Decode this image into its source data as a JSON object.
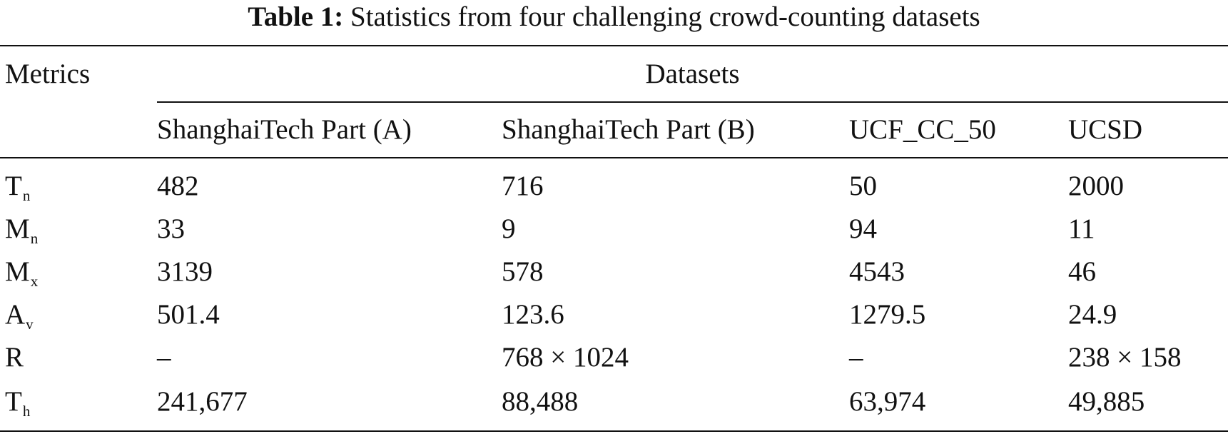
{
  "caption": {
    "label": "Table 1:",
    "text": "Statistics from four challenging crowd-counting datasets"
  },
  "header": {
    "metrics": "Metrics",
    "datasets": "Datasets",
    "columns": [
      "ShanghaiTech Part (A)",
      "ShanghaiTech Part (B)",
      "UCF_CC_50",
      "UCSD"
    ]
  },
  "rows": [
    {
      "metric": "T",
      "sub": "n",
      "values": [
        "482",
        "716",
        "50",
        "2000"
      ]
    },
    {
      "metric": "M",
      "sub": "n",
      "values": [
        "33",
        "9",
        "94",
        "11"
      ]
    },
    {
      "metric": "M",
      "sub": "x",
      "values": [
        "3139",
        "578",
        "4543",
        "46"
      ]
    },
    {
      "metric": "A",
      "sub": "v",
      "values": [
        "501.4",
        "123.6",
        "1279.5",
        "24.9"
      ]
    },
    {
      "metric": "R",
      "sub": "",
      "values": [
        "–",
        "768 × 1024",
        "–",
        "238 × 158"
      ]
    },
    {
      "metric": "T",
      "sub": "h",
      "values": [
        "241,677",
        "88,488",
        "63,974",
        "49,885"
      ]
    }
  ]
}
